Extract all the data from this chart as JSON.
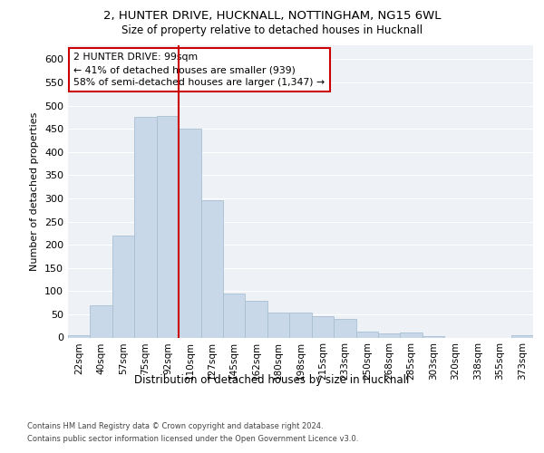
{
  "title1": "2, HUNTER DRIVE, HUCKNALL, NOTTINGHAM, NG15 6WL",
  "title2": "Size of property relative to detached houses in Hucknall",
  "xlabel": "Distribution of detached houses by size in Hucknall",
  "ylabel": "Number of detached properties",
  "categories": [
    "22sqm",
    "40sqm",
    "57sqm",
    "75sqm",
    "92sqm",
    "110sqm",
    "127sqm",
    "145sqm",
    "162sqm",
    "180sqm",
    "198sqm",
    "215sqm",
    "233sqm",
    "250sqm",
    "268sqm",
    "285sqm",
    "303sqm",
    "320sqm",
    "338sqm",
    "355sqm",
    "373sqm"
  ],
  "values": [
    5,
    70,
    220,
    475,
    478,
    450,
    295,
    95,
    80,
    53,
    53,
    45,
    40,
    12,
    8,
    11,
    3,
    0,
    0,
    0,
    5
  ],
  "bar_color": "#c8d8e8",
  "bar_edge_color": "#a8bfd0",
  "vline_x": 4.5,
  "vline_color": "#cc0000",
  "annotation_text": "2 HUNTER DRIVE: 99sqm\n← 41% of detached houses are smaller (939)\n58% of semi-detached houses are larger (1,347) →",
  "annotation_box_color": "#cc0000",
  "ylim": [
    0,
    630
  ],
  "yticks": [
    0,
    50,
    100,
    150,
    200,
    250,
    300,
    350,
    400,
    450,
    500,
    550,
    600
  ],
  "footer1": "Contains HM Land Registry data © Crown copyright and database right 2024.",
  "footer2": "Contains public sector information licensed under the Open Government Licence v3.0.",
  "plot_bg_color": "#eef2f7"
}
